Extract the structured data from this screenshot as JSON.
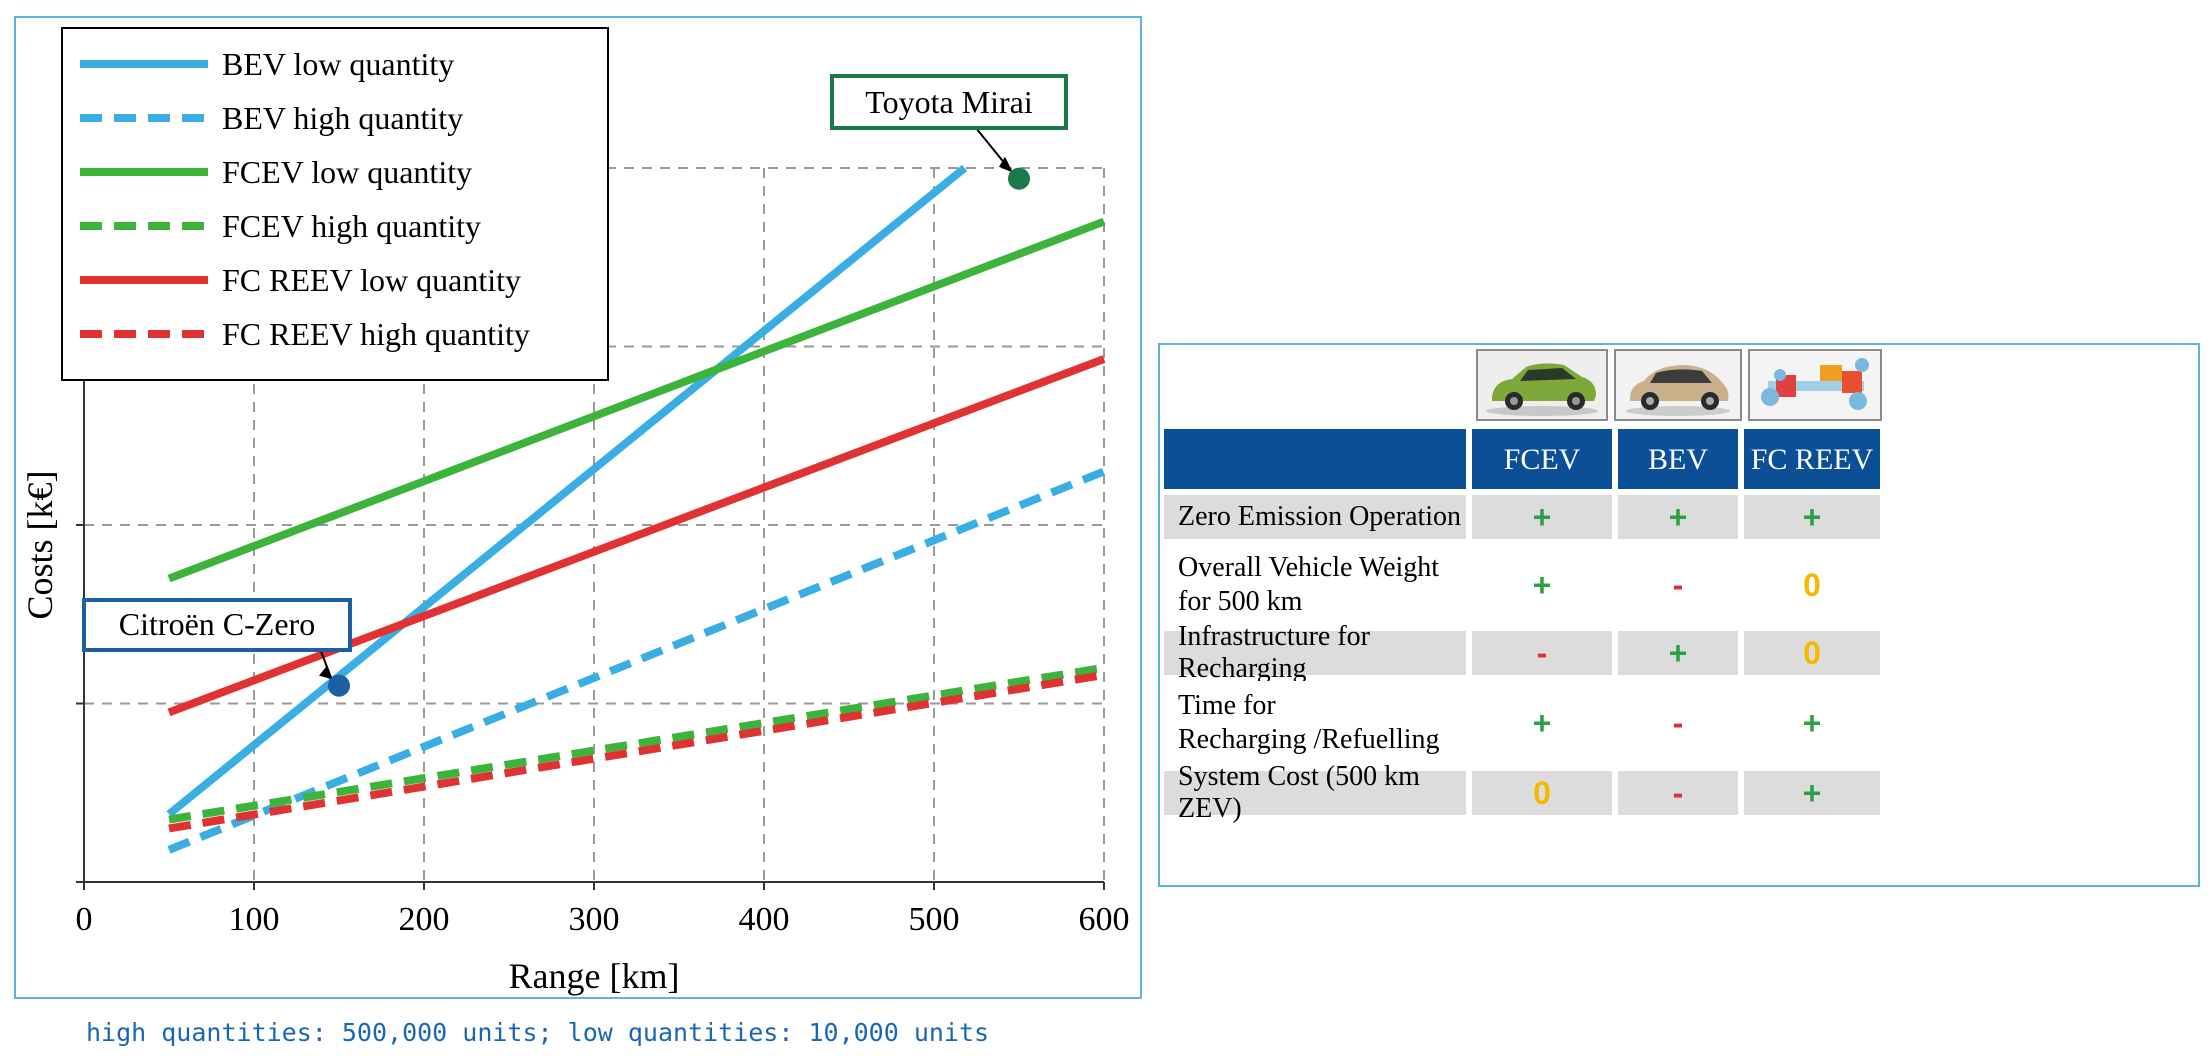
{
  "chart_data": {
    "type": "line",
    "xlabel": "Range [km]",
    "ylabel": "Costs [k€]",
    "x_ticks": [
      0,
      100,
      200,
      300,
      400,
      500,
      600
    ],
    "xlim": [
      0,
      600
    ],
    "grid": true,
    "legend_position": "top-left",
    "series": [
      {
        "name": "BEV low quantity",
        "style": "solid",
        "color": "#3aaee3",
        "x": [
          50,
          518
        ],
        "y": [
          0.38,
          4.0
        ]
      },
      {
        "name": "BEV high quantity",
        "style": "dashed",
        "color": "#3aaee3",
        "x": [
          50,
          600
        ],
        "y": [
          0.18,
          2.3
        ]
      },
      {
        "name": "FCEV low quantity",
        "style": "solid",
        "color": "#3cb43c",
        "x": [
          50,
          600
        ],
        "y": [
          1.7,
          3.7
        ]
      },
      {
        "name": "FCEV high quantity",
        "style": "dashed",
        "color": "#3cb43c",
        "x": [
          50,
          600
        ],
        "y": [
          0.35,
          1.2
        ]
      },
      {
        "name": "FC REEV low quantity",
        "style": "solid",
        "color": "#e03232",
        "x": [
          50,
          600
        ],
        "y": [
          0.95,
          2.93
        ]
      },
      {
        "name": "FC REEV high quantity",
        "style": "dashed",
        "color": "#e03232",
        "x": [
          50,
          600
        ],
        "y": [
          0.3,
          1.16
        ]
      }
    ],
    "annotations": [
      {
        "label": "Toyota Mirai",
        "x": 550,
        "y": 3.94,
        "color": "#1a7a4a"
      },
      {
        "label": "Citroën C-Zero",
        "x": 150,
        "y": 1.1,
        "color": "#1d5fa0"
      }
    ]
  },
  "footnote": "high quantities: 500,000 units; low quantities: 10,000 units",
  "table": {
    "images": [
      {
        "name": "green SUV",
        "icon": "fcev-car-image"
      },
      {
        "name": "beige hatchback",
        "icon": "bev-car-image"
      },
      {
        "name": "powertrain diagram",
        "icon": "fc-reev-powertrain-image"
      }
    ],
    "columns": [
      "FCEV",
      "BEV",
      "FC REEV"
    ],
    "rows": [
      {
        "label": "Zero Emission Operation",
        "values": [
          "+",
          "+",
          "+"
        ]
      },
      {
        "label": "Overall Vehicle Weight\nfor 500 km",
        "values": [
          "+",
          "-",
          "0"
        ]
      },
      {
        "label": "Infrastructure for Recharging",
        "values": [
          "-",
          "+",
          "0"
        ]
      },
      {
        "label": "Time for\nRecharging /Refuelling",
        "values": [
          "+",
          "-",
          "+"
        ]
      },
      {
        "label": "System Cost (500 km ZEV)",
        "values": [
          "0",
          "-",
          "+"
        ]
      }
    ],
    "colors": {
      "header": "#0b4f97",
      "plus": "#2ea043",
      "minus": "#e03030",
      "zero": "#f5b800"
    }
  }
}
